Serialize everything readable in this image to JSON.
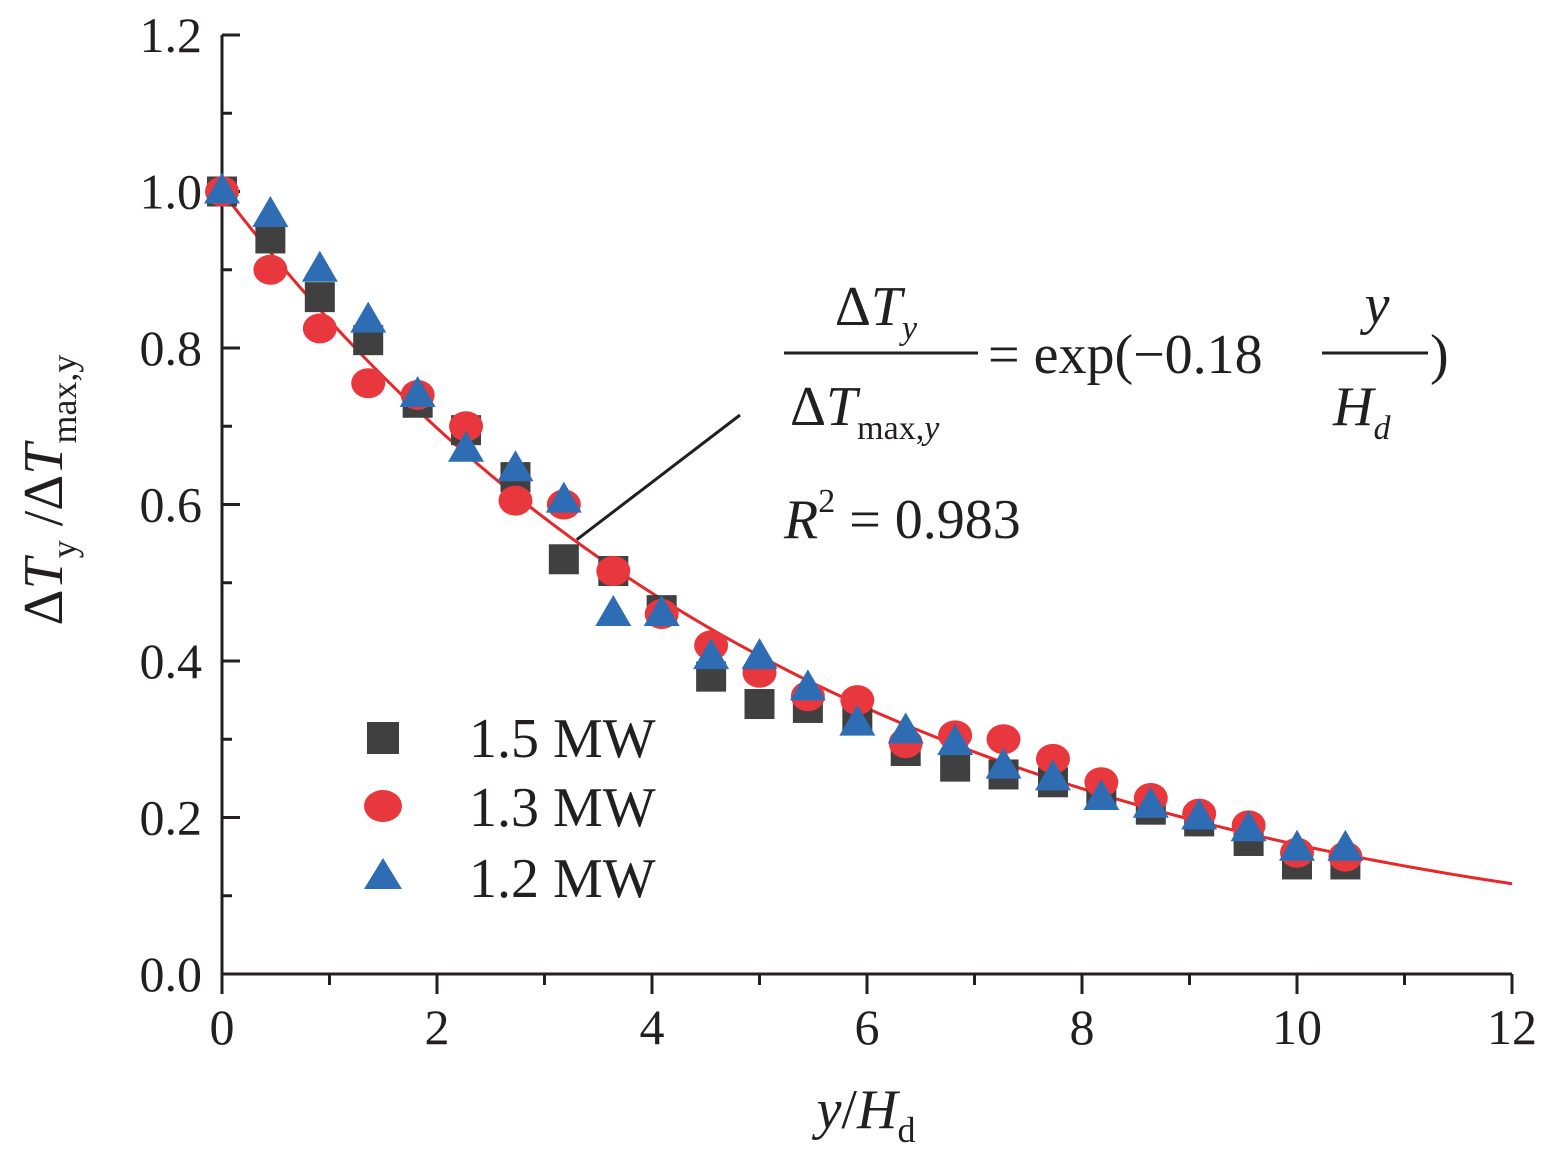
{
  "chart_data": {
    "type": "scatter",
    "xlabel": {
      "main": "y",
      "sep": "/",
      "h": "H",
      "sub": "d"
    },
    "ylabel": {
      "d1": "Δ",
      "t1": "T",
      "s1": "y",
      "sep": " /",
      "d2": "Δ",
      "t2": "T",
      "s2": "max,y"
    },
    "xlim": [
      0,
      12
    ],
    "ylim": [
      0,
      1.2
    ],
    "x_ticks": [
      "0",
      "2",
      "4",
      "6",
      "8",
      "10",
      "12"
    ],
    "y_ticks": [
      "0.0",
      "0.2",
      "0.4",
      "0.6",
      "0.8",
      "1.0",
      "1.2"
    ],
    "grid": false,
    "legend_position": "bottom-left",
    "series": [
      {
        "name": "1.5 MW",
        "marker": "square",
        "color": "#404040",
        "x": [
          0.0,
          0.45,
          0.91,
          1.36,
          1.82,
          2.27,
          2.73,
          3.18,
          3.64,
          4.09,
          4.55,
          5.0,
          5.45,
          5.91,
          6.36,
          6.82,
          7.27,
          7.73,
          8.18,
          8.64,
          9.09,
          9.55,
          10.0,
          10.45
        ],
        "y": [
          1.0,
          0.94,
          0.865,
          0.81,
          0.73,
          0.695,
          0.635,
          0.53,
          0.515,
          0.465,
          0.38,
          0.345,
          0.34,
          0.33,
          0.285,
          0.265,
          0.255,
          0.245,
          0.23,
          0.21,
          0.195,
          0.17,
          0.14,
          0.14
        ]
      },
      {
        "name": "1.3 MW",
        "marker": "circle",
        "color": "#e8383d",
        "x": [
          0.0,
          0.45,
          0.91,
          1.36,
          1.82,
          2.27,
          2.73,
          3.18,
          3.64,
          4.09,
          4.55,
          5.0,
          5.45,
          5.91,
          6.36,
          6.82,
          7.27,
          7.73,
          8.18,
          8.64,
          9.09,
          9.55,
          10.0,
          10.45
        ],
        "y": [
          1.0,
          0.9,
          0.825,
          0.755,
          0.74,
          0.7,
          0.605,
          0.6,
          0.515,
          0.46,
          0.42,
          0.385,
          0.355,
          0.35,
          0.295,
          0.305,
          0.3,
          0.275,
          0.245,
          0.225,
          0.205,
          0.19,
          0.155,
          0.15
        ]
      },
      {
        "name": "1.2 MW",
        "marker": "triangle",
        "color": "#2e6db4",
        "x": [
          0.0,
          0.45,
          0.91,
          1.36,
          1.82,
          2.27,
          2.73,
          3.18,
          3.64,
          4.09,
          4.55,
          5.0,
          5.45,
          5.91,
          6.36,
          6.82,
          7.27,
          7.73,
          8.18,
          8.64,
          9.09,
          9.55,
          10.0,
          10.45
        ],
        "y": [
          1.0,
          0.97,
          0.9,
          0.835,
          0.74,
          0.67,
          0.645,
          0.605,
          0.46,
          0.46,
          0.405,
          0.405,
          0.365,
          0.32,
          0.31,
          0.295,
          0.265,
          0.25,
          0.225,
          0.215,
          0.2,
          0.185,
          0.16,
          0.16
        ]
      }
    ],
    "fit": {
      "color": "#e8272a",
      "coefficient": -0.18,
      "x_range": [
        0,
        12
      ]
    },
    "annotation": {
      "lhs_num_delta": "Δ",
      "lhs_num_t": "T",
      "lhs_num_sub": "y",
      "lhs_den_delta": "Δ",
      "lhs_den_t": "T",
      "lhs_den_sub_max": "max,",
      "lhs_den_sub_y": "y",
      "eq_rhs_prefix": "= exp(−0.18",
      "eq_rhs_suffix": ")",
      "rhs_num": "y",
      "rhs_den_h": "H",
      "rhs_den_sub": "d",
      "r2_r": "R",
      "r2_exp": "2",
      "r2_rest": " = 0.983"
    }
  }
}
